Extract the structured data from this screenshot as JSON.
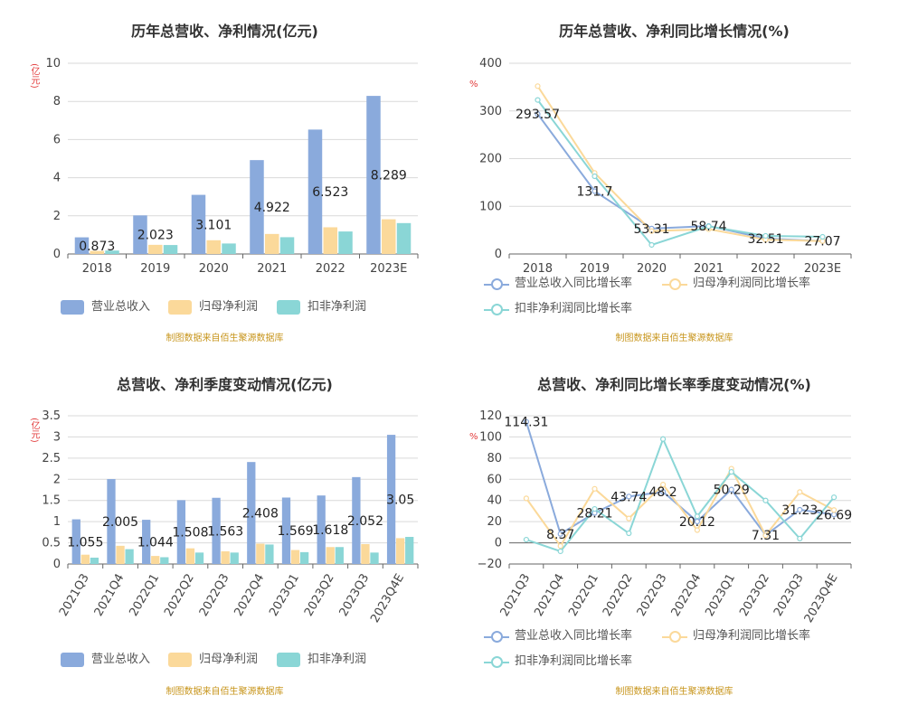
{
  "source_text": "制图数据来自佰生聚源数据库",
  "colors": {
    "revenue": "#8aaadc",
    "parent_profit": "#fbd99a",
    "deducted_profit": "#8ad6d6"
  },
  "chart_data": [
    {
      "type": "bar",
      "title": "历年总营收、净利情况(亿元)",
      "ylabel": "(亿元)",
      "ylim": [
        0,
        10
      ],
      "yticks": [
        "0",
        "2",
        "4",
        "6",
        "8",
        "10"
      ],
      "categories": [
        "2018",
        "2019",
        "2020",
        "2021",
        "2022",
        "2023E"
      ],
      "series": [
        {
          "name": "营业总收入",
          "values": [
            0.873,
            2.023,
            3.101,
            4.922,
            6.523,
            8.289
          ]
        },
        {
          "name": "归母净利润",
          "values": [
            0.16,
            0.48,
            0.72,
            1.05,
            1.4,
            1.82
          ]
        },
        {
          "name": "扣非净利润",
          "values": [
            0.18,
            0.47,
            0.55,
            0.88,
            1.18,
            1.62
          ]
        }
      ],
      "data_labels": [
        "0.873",
        "2.023",
        "3.101",
        "4.922",
        "6.523",
        "8.289"
      ]
    },
    {
      "type": "line",
      "title": "历年总营收、净利同比增长情况(%)",
      "ylabel": "%",
      "ylim": [
        0,
        400
      ],
      "yticks": [
        "0",
        "100",
        "200",
        "300",
        "400"
      ],
      "categories": [
        "2018",
        "2019",
        "2020",
        "2021",
        "2022",
        "2023E"
      ],
      "series": [
        {
          "name": "营业总收入同比增长率",
          "values": [
            293.57,
            131.7,
            53.31,
            58.74,
            32.51,
            27.07
          ]
        },
        {
          "name": "归母净利润同比增长率",
          "values": [
            352,
            170,
            48,
            52,
            30,
            27
          ]
        },
        {
          "name": "扣非净利润同比增长率",
          "values": [
            323,
            163,
            19,
            58,
            38,
            36
          ]
        }
      ],
      "data_labels": [
        "293.57",
        "131.7",
        "53.31",
        "58.74",
        "32.51",
        "27.07"
      ]
    },
    {
      "type": "bar",
      "title": "总营收、净利季度变动情况(亿元)",
      "ylabel": "(亿元)",
      "ylim": [
        0,
        3.5
      ],
      "yticks": [
        "0",
        "0.5",
        "1",
        "1.5",
        "2",
        "2.5",
        "3",
        "3.5"
      ],
      "categories": [
        "2021Q3",
        "2021Q4",
        "2022Q1",
        "2022Q2",
        "2022Q3",
        "2022Q4",
        "2023Q1",
        "2023Q2",
        "2023Q3",
        "2023Q4E"
      ],
      "series": [
        {
          "name": "营业总收入",
          "values": [
            1.055,
            2.005,
            1.044,
            1.508,
            1.563,
            2.408,
            1.569,
            1.618,
            2.052,
            3.05
          ]
        },
        {
          "name": "归母净利润",
          "values": [
            0.22,
            0.43,
            0.19,
            0.37,
            0.3,
            0.48,
            0.33,
            0.4,
            0.47,
            0.61
          ]
        },
        {
          "name": "扣非净利润",
          "values": [
            0.15,
            0.35,
            0.16,
            0.27,
            0.27,
            0.46,
            0.28,
            0.4,
            0.27,
            0.64
          ]
        }
      ],
      "data_labels": [
        "1.055",
        "2.005",
        "1.044",
        "1.508",
        "1.563",
        "2.408",
        "1.569",
        "1.618",
        "2.052",
        "3.05"
      ]
    },
    {
      "type": "line",
      "title": "总营收、净利同比增长率季度变动情况(%)",
      "ylabel": "%",
      "ylim": [
        -20,
        120
      ],
      "yticks": [
        "−20",
        "0",
        "20",
        "40",
        "60",
        "80",
        "100",
        "120"
      ],
      "categories": [
        "2021Q3",
        "2021Q4",
        "2022Q1",
        "2022Q2",
        "2022Q3",
        "2022Q4",
        "2023Q1",
        "2023Q2",
        "2023Q3",
        "2023Q4E"
      ],
      "series": [
        {
          "name": "营业总收入同比增长率",
          "values": [
            114.31,
            8.37,
            28.21,
            43.74,
            48.2,
            20.12,
            50.29,
            7.31,
            31.23,
            26.69
          ]
        },
        {
          "name": "归母净利润同比增长率",
          "values": [
            42,
            -3,
            51,
            23,
            55,
            12,
            70,
            7,
            48,
            31
          ]
        },
        {
          "name": "扣非净利润同比增长率",
          "values": [
            3,
            -8,
            32,
            9,
            98,
            25,
            67,
            40,
            4,
            43
          ]
        }
      ],
      "data_labels": [
        "114.31",
        "8.37",
        "28.21",
        "43.74",
        "48.2",
        "20.12",
        "50.29",
        "7.31",
        "31.23",
        "26.69"
      ]
    }
  ]
}
